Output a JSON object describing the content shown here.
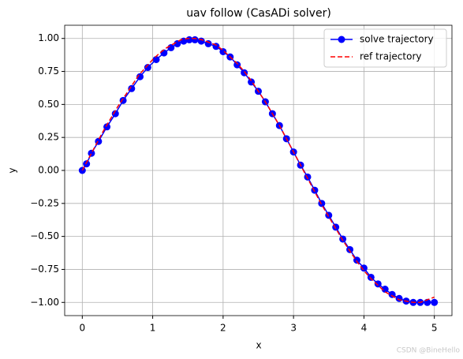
{
  "chart_data": {
    "type": "line",
    "title": "uav follow (CasADi solver)",
    "xlabel": "x",
    "ylabel": "y",
    "xlim": [
      -0.25,
      5.25
    ],
    "ylim": [
      -1.1,
      1.1
    ],
    "xticks": [
      0,
      1,
      2,
      3,
      4,
      5
    ],
    "yticks": [
      {
        "value": -1,
        "label": "−1.00"
      },
      {
        "value": -0.75,
        "label": "−0.75"
      },
      {
        "value": -0.5,
        "label": "−0.50"
      },
      {
        "value": -0.25,
        "label": "−0.25"
      },
      {
        "value": 0,
        "label": "0.00"
      },
      {
        "value": 0.25,
        "label": "0.25"
      },
      {
        "value": 0.5,
        "label": "0.50"
      },
      {
        "value": 0.75,
        "label": "0.75"
      },
      {
        "value": 1,
        "label": "1.00"
      }
    ],
    "grid": true,
    "legend": "upper right",
    "series": [
      {
        "name": "solve trajectory",
        "color": "#0000ff",
        "linestyle": "solid",
        "marker": "o",
        "x": [
          0,
          0.06,
          0.13,
          0.23,
          0.35,
          0.47,
          0.58,
          0.7,
          0.82,
          0.93,
          1.05,
          1.16,
          1.26,
          1.35,
          1.44,
          1.52,
          1.6,
          1.69,
          1.79,
          1.9,
          2.0,
          2.1,
          2.2,
          2.3,
          2.4,
          2.5,
          2.6,
          2.7,
          2.8,
          2.9,
          3.0,
          3.1,
          3.2,
          3.3,
          3.4,
          3.5,
          3.6,
          3.7,
          3.8,
          3.9,
          4.0,
          4.1,
          4.2,
          4.3,
          4.4,
          4.5,
          4.6,
          4.7,
          4.8,
          4.9,
          5.0
        ],
        "values": [
          0,
          0.05,
          0.13,
          0.22,
          0.33,
          0.43,
          0.53,
          0.62,
          0.71,
          0.78,
          0.84,
          0.89,
          0.93,
          0.96,
          0.98,
          0.99,
          0.99,
          0.98,
          0.96,
          0.94,
          0.9,
          0.86,
          0.8,
          0.74,
          0.67,
          0.6,
          0.52,
          0.43,
          0.34,
          0.24,
          0.14,
          0.04,
          -0.05,
          -0.15,
          -0.25,
          -0.34,
          -0.43,
          -0.52,
          -0.6,
          -0.68,
          -0.74,
          -0.81,
          -0.86,
          -0.9,
          -0.94,
          -0.97,
          -0.99,
          -1.0,
          -1.0,
          -1.0,
          -1.0
        ]
      },
      {
        "name": "ref trajectory",
        "color": "#ff0000",
        "linestyle": "dashed",
        "x": [
          0,
          0.1,
          0.2,
          0.3,
          0.4,
          0.5,
          0.6,
          0.7,
          0.8,
          0.9,
          1.0,
          1.1,
          1.2,
          1.3,
          1.4,
          1.5,
          1.6,
          1.7,
          1.8,
          1.9,
          2.0,
          2.1,
          2.2,
          2.3,
          2.4,
          2.5,
          2.6,
          2.7,
          2.8,
          2.9,
          3.0,
          3.1,
          3.2,
          3.3,
          3.4,
          3.5,
          3.6,
          3.7,
          3.8,
          3.9,
          4.0,
          4.1,
          4.2,
          4.3,
          4.4,
          4.5,
          4.6,
          4.7,
          4.8,
          4.9,
          5.0
        ],
        "values": [
          0,
          0.1,
          0.2,
          0.3,
          0.39,
          0.48,
          0.56,
          0.64,
          0.72,
          0.78,
          0.84,
          0.89,
          0.93,
          0.96,
          0.99,
          1.0,
          1.0,
          0.99,
          0.97,
          0.95,
          0.91,
          0.86,
          0.81,
          0.75,
          0.68,
          0.6,
          0.52,
          0.43,
          0.34,
          0.24,
          0.14,
          0.04,
          -0.06,
          -0.16,
          -0.26,
          -0.35,
          -0.44,
          -0.53,
          -0.61,
          -0.69,
          -0.76,
          -0.82,
          -0.87,
          -0.92,
          -0.95,
          -0.98,
          -0.99,
          -1.0,
          -1.0,
          -0.98,
          -0.96
        ]
      }
    ],
    "watermark": "CSDN @BineHello"
  }
}
